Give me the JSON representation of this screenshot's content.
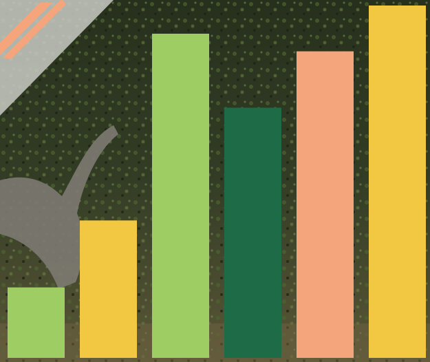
{
  "chart_data": {
    "type": "bar",
    "categories": [
      null,
      null,
      null,
      null,
      null,
      null
    ],
    "values": [
      20,
      39,
      92,
      71,
      87,
      100
    ],
    "colors": [
      "#9dcd63",
      "#f2c842",
      "#9dcd63",
      "#1e6b47",
      "#f4a57b",
      "#f2c842"
    ],
    "ylim": [
      0,
      100
    ]
  }
}
